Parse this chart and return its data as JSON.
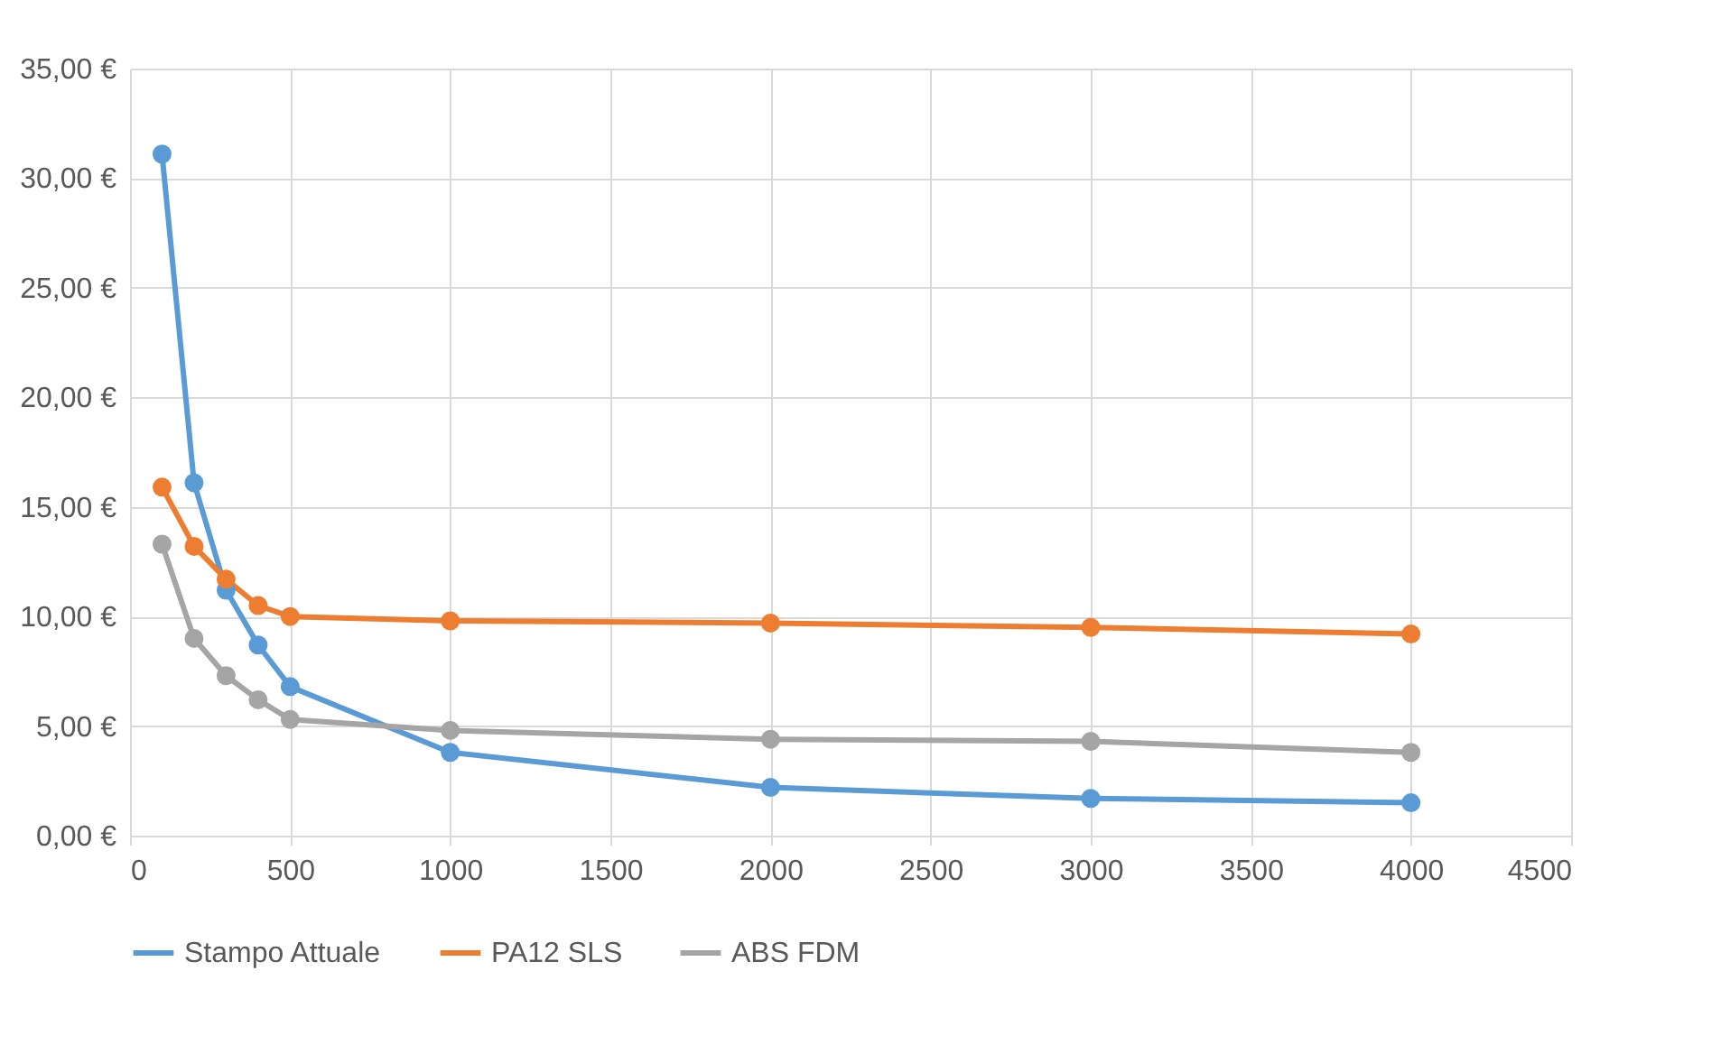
{
  "chart_data": {
    "type": "line",
    "x": [
      100,
      200,
      300,
      400,
      500,
      1000,
      2000,
      3000,
      4000
    ],
    "series": [
      {
        "name": "Stampo Attuale",
        "color": "#5b9bd5",
        "values": [
          31.1,
          16.1,
          11.2,
          8.7,
          6.8,
          3.8,
          2.2,
          1.7,
          1.5
        ]
      },
      {
        "name": "PA12 SLS",
        "color": "#ed7d31",
        "values": [
          15.9,
          13.2,
          11.7,
          10.5,
          10.0,
          9.8,
          9.7,
          9.5,
          9.2
        ]
      },
      {
        "name": "ABS FDM",
        "color": "#a5a5a5",
        "values": [
          13.3,
          9.0,
          7.3,
          6.2,
          5.3,
          4.8,
          4.4,
          4.3,
          3.8
        ]
      }
    ],
    "xlim": [
      0,
      4500
    ],
    "xticks": [
      0,
      500,
      1000,
      1500,
      2000,
      2500,
      3000,
      3500,
      4000,
      4500
    ],
    "ylim": [
      0,
      35
    ],
    "yticks": [
      {
        "value": 0,
        "label": "0,00 €"
      },
      {
        "value": 5,
        "label": "5,00 €"
      },
      {
        "value": 10,
        "label": "10,00 €"
      },
      {
        "value": 15,
        "label": "15,00 €"
      },
      {
        "value": 20,
        "label": "20,00 €"
      },
      {
        "value": 25,
        "label": "25,00 €"
      },
      {
        "value": 30,
        "label": "30,00 €"
      },
      {
        "value": 35,
        "label": "35,00 €"
      }
    ],
    "grid": true,
    "legend": "bottom",
    "marker": "circle",
    "line_style": "solid"
  }
}
